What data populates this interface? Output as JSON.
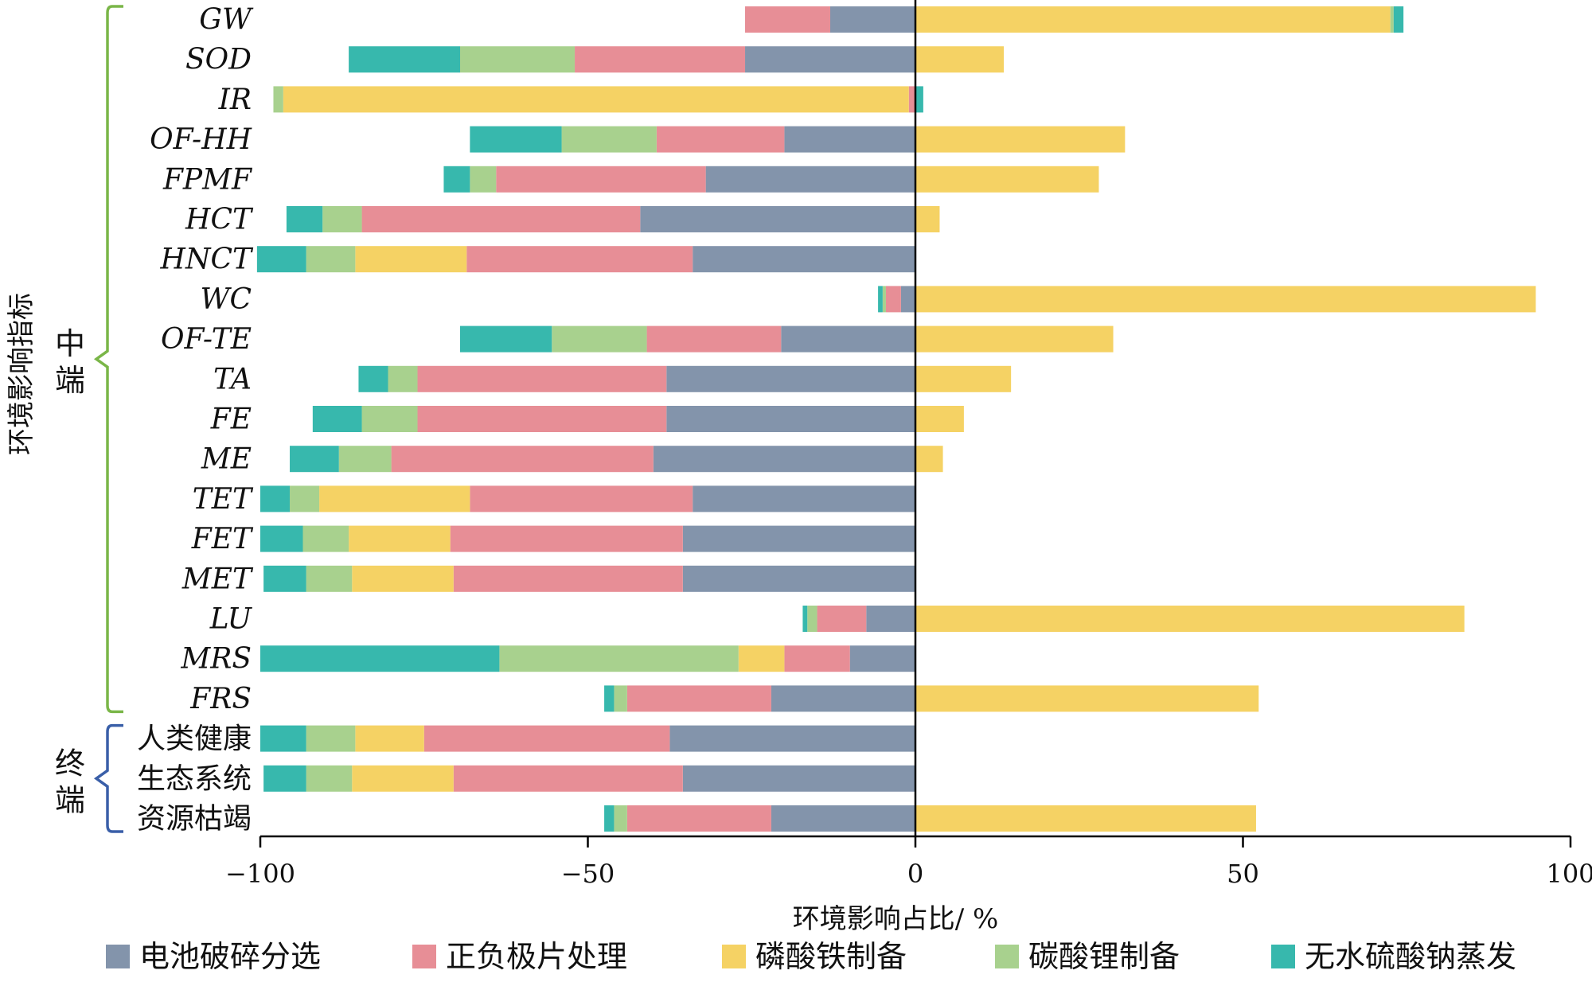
{
  "chart_data": {
    "type": "bar",
    "orientation": "horizontal",
    "stacked": "diverging",
    "xlabel": "环境影响占比/ %",
    "ylabel": "环境影响指标",
    "xlim": [
      -100,
      100
    ],
    "xticks": [
      -100,
      -50,
      0,
      50,
      100
    ],
    "xtick_labels": [
      "−100",
      "−50",
      "0",
      "50",
      "100"
    ],
    "grid": false,
    "legend_position": "bottom",
    "groups": [
      {
        "label": "中端",
        "chars": [
          "中",
          "端"
        ],
        "start": 0,
        "end": 17,
        "color": "#7ab648"
      },
      {
        "label": "终端",
        "chars": [
          "终",
          "端"
        ],
        "start": 18,
        "end": 20,
        "color": "#3a5fa8"
      }
    ],
    "categories": [
      "GW",
      "SOD",
      "IR",
      "OF-HH",
      "FPMF",
      "HCT",
      "HNCT",
      "WC",
      "OF-TE",
      "TA",
      "FE",
      "ME",
      "TET",
      "FET",
      "MET",
      "LU",
      "MRS",
      "FRS",
      "人类健康",
      "生态系统",
      "资源枯竭"
    ],
    "series": [
      {
        "name": "电池破碎分选",
        "color": "#8394ab",
        "values": [
          -13,
          -26,
          0,
          -20,
          -32,
          -42,
          -34,
          -2.2,
          -20.5,
          -38,
          -38,
          -40,
          -34,
          -35.5,
          -35.5,
          -7.5,
          -10,
          -22,
          -37.5,
          -35.5,
          -22
        ]
      },
      {
        "name": "正负极片处理",
        "color": "#e78e96",
        "values": [
          -13,
          -26,
          -1,
          -19.5,
          -32,
          -42.5,
          -34.5,
          -2.3,
          -20.5,
          -38,
          -38,
          -40,
          -34,
          -35.5,
          -35,
          -7.5,
          -10,
          -22,
          -37.5,
          -35,
          -22
        ]
      },
      {
        "name": "磷酸铁制备",
        "color": "#f5d264",
        "values": [
          72.5,
          13.5,
          -95.5,
          32,
          28,
          3.7,
          -17,
          94.7,
          30.2,
          14.6,
          7.4,
          4.2,
          -23,
          -15.5,
          -15.5,
          83.8,
          -7,
          52.4,
          -10.5,
          -15.5,
          52
        ]
      },
      {
        "name": "碳酸锂制备",
        "color": "#a8d18e",
        "values": [
          0.5,
          -17.5,
          -1.5,
          -14.5,
          -4,
          -6,
          -7.5,
          -0.5,
          -14.5,
          -4.5,
          -8.5,
          -8,
          -4.5,
          -7,
          -7,
          -1.5,
          -36.5,
          -2,
          -7.5,
          -7,
          -2
        ]
      },
      {
        "name": "无水硫酸钠蒸发",
        "color": "#37b8ad",
        "values": [
          1.5,
          -17,
          1.2,
          -14,
          -4,
          -5.5,
          -7.5,
          -0.7,
          -14,
          -4.5,
          -7.5,
          -7.5,
          -4.5,
          -6.5,
          -6.5,
          -0.7,
          -36.5,
          -1.5,
          -7,
          -6.5,
          -1.5
        ]
      }
    ]
  }
}
